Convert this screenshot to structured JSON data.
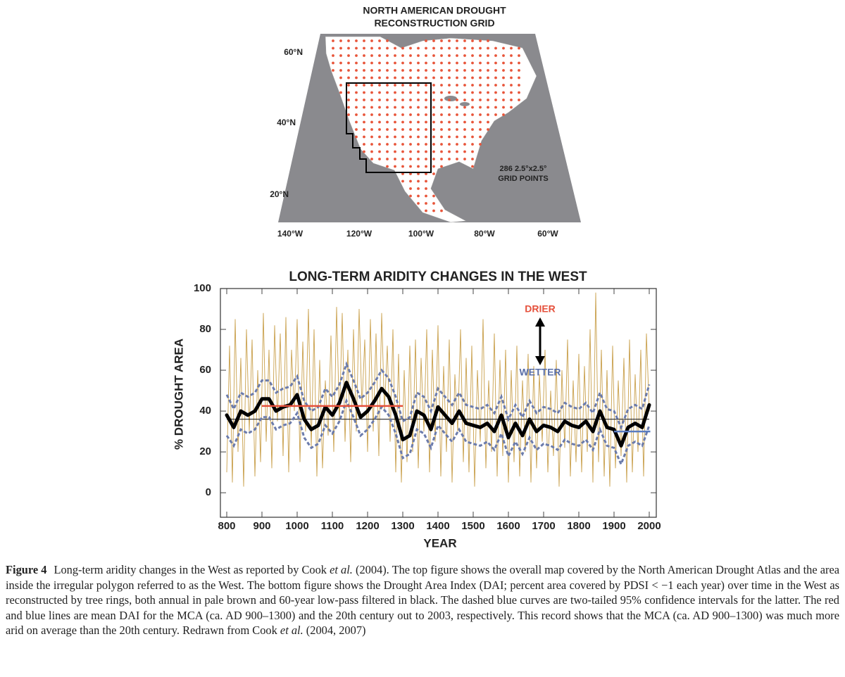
{
  "map": {
    "title_lines": [
      "NORTH AMERICAN DROUGHT",
      "RECONSTRUCTION GRID"
    ],
    "lat_labels": [
      "60°N",
      "40°N",
      "20°N"
    ],
    "lon_labels": [
      "140°W",
      "120°W",
      "100°W",
      "80°W",
      "60°W"
    ],
    "note_lines": [
      "286 2.5°x2.5°",
      "GRID POINTS"
    ]
  },
  "chart_data": {
    "type": "line",
    "title": "LONG-TERM ARIDITY CHANGES IN THE WEST",
    "x_label": "YEAR",
    "y_label": "% DROUGHT AREA",
    "xlim": [
      782,
      2020
    ],
    "ylim": [
      -12,
      100
    ],
    "xticks": [
      800,
      900,
      1000,
      1100,
      1200,
      1300,
      1400,
      1500,
      1600,
      1700,
      1800,
      1900,
      2000
    ],
    "yticks": [
      0,
      20,
      40,
      60,
      80,
      100
    ],
    "annotations": [
      {
        "text": "DRIER",
        "color": "#e5503b"
      },
      {
        "text": "WETTER",
        "color": "#5a6fa8"
      }
    ],
    "series": [
      {
        "color": "#c9a04c",
        "style": "solid",
        "x": [
          800,
          808,
          816,
          824,
          832,
          840,
          848,
          856,
          864,
          872,
          880,
          888,
          896,
          904,
          912,
          920,
          928,
          936,
          944,
          952,
          960,
          968,
          976,
          984,
          992,
          1000,
          1008,
          1016,
          1024,
          1032,
          1040,
          1048,
          1056,
          1064,
          1072,
          1080,
          1088,
          1096,
          1104,
          1112,
          1120,
          1128,
          1136,
          1144,
          1152,
          1160,
          1168,
          1176,
          1184,
          1192,
          1200,
          1208,
          1216,
          1224,
          1232,
          1240,
          1248,
          1256,
          1264,
          1272,
          1280,
          1288,
          1296,
          1304,
          1312,
          1320,
          1328,
          1336,
          1344,
          1352,
          1360,
          1368,
          1376,
          1384,
          1392,
          1400,
          1408,
          1416,
          1424,
          1432,
          1440,
          1448,
          1456,
          1464,
          1472,
          1480,
          1488,
          1496,
          1504,
          1512,
          1520,
          1528,
          1536,
          1544,
          1552,
          1560,
          1568,
          1576,
          1584,
          1592,
          1600,
          1608,
          1616,
          1624,
          1632,
          1640,
          1648,
          1656,
          1664,
          1672,
          1680,
          1688,
          1696,
          1704,
          1712,
          1720,
          1728,
          1736,
          1744,
          1752,
          1760,
          1768,
          1776,
          1784,
          1792,
          1800,
          1808,
          1816,
          1824,
          1832,
          1840,
          1848,
          1856,
          1864,
          1872,
          1880,
          1888,
          1896,
          1904,
          1912,
          1920,
          1928,
          1936,
          1944,
          1952,
          1960,
          1968,
          1976,
          1984,
          1992,
          2000
        ],
        "values": [
          10,
          72,
          5,
          85,
          20,
          66,
          3,
          80,
          30,
          75,
          8,
          60,
          15,
          88,
          25,
          70,
          12,
          82,
          35,
          78,
          18,
          86,
          10,
          70,
          40,
          85,
          15,
          74,
          30,
          90,
          22,
          80,
          8,
          65,
          12,
          55,
          28,
          77,
          20,
          91,
          35,
          88,
          25,
          70,
          15,
          80,
          30,
          90,
          42,
          75,
          20,
          85,
          30,
          78,
          18,
          88,
          40,
          72,
          25,
          80,
          10,
          68,
          5,
          60,
          15,
          72,
          20,
          75,
          12,
          66,
          30,
          80,
          10,
          70,
          25,
          82,
          8,
          62,
          20,
          75,
          5,
          58,
          30,
          80,
          15,
          66,
          10,
          72,
          3,
          60,
          25,
          85,
          12,
          55,
          20,
          78,
          8,
          65,
          18,
          70,
          5,
          60,
          15,
          72,
          8,
          55,
          20,
          68,
          5,
          62,
          12,
          58,
          25,
          70,
          10,
          50,
          18,
          65,
          3,
          60,
          22,
          75,
          8,
          55,
          15,
          68,
          10,
          62,
          20,
          80,
          5,
          98,
          15,
          70,
          8,
          60,
          3,
          72,
          12,
          55,
          18,
          66,
          5,
          75,
          10,
          58,
          20,
          70,
          8,
          78,
          40
        ]
      },
      {
        "color": "#222222",
        "style": "solid",
        "x": [
          800,
          2000
        ],
        "values": [
          36,
          36
        ]
      },
      {
        "color": "#6b7bab",
        "style": "dashed",
        "x": [
          800,
          820,
          840,
          860,
          880,
          900,
          920,
          940,
          960,
          980,
          1000,
          1020,
          1040,
          1060,
          1080,
          1100,
          1120,
          1140,
          1160,
          1180,
          1200,
          1220,
          1240,
          1260,
          1280,
          1300,
          1320,
          1340,
          1360,
          1380,
          1400,
          1420,
          1440,
          1460,
          1480,
          1500,
          1520,
          1540,
          1560,
          1580,
          1600,
          1620,
          1640,
          1660,
          1680,
          1700,
          1720,
          1740,
          1760,
          1780,
          1800,
          1820,
          1840,
          1860,
          1880,
          1900,
          1920,
          1940,
          1960,
          1980,
          2000
        ],
        "values": [
          48,
          41,
          49,
          47,
          49,
          55,
          55,
          49,
          51,
          52,
          57,
          45,
          40,
          42,
          51,
          47,
          53,
          63,
          55,
          46,
          49,
          54,
          60,
          56,
          47,
          35,
          37,
          49,
          47,
          40,
          51,
          47,
          43,
          49,
          43,
          42,
          41,
          43,
          39,
          47,
          36,
          43,
          37,
          45,
          39,
          42,
          41,
          39,
          44,
          42,
          41,
          44,
          39,
          49,
          41,
          40,
          32,
          41,
          43,
          41,
          53
        ]
      },
      {
        "color": "#6b7bab",
        "style": "dashed",
        "x": [
          800,
          820,
          840,
          860,
          880,
          900,
          920,
          940,
          960,
          980,
          1000,
          1020,
          1040,
          1060,
          1080,
          1100,
          1120,
          1140,
          1160,
          1180,
          1200,
          1220,
          1240,
          1260,
          1280,
          1300,
          1320,
          1340,
          1360,
          1380,
          1400,
          1420,
          1440,
          1460,
          1480,
          1500,
          1520,
          1540,
          1560,
          1580,
          1600,
          1620,
          1640,
          1660,
          1680,
          1700,
          1720,
          1740,
          1760,
          1780,
          1800,
          1820,
          1840,
          1860,
          1880,
          1900,
          1920,
          1940,
          1960,
          1980,
          2000
        ],
        "values": [
          28,
          23,
          31,
          29,
          31,
          37,
          37,
          31,
          33,
          34,
          39,
          27,
          22,
          24,
          33,
          29,
          35,
          45,
          37,
          28,
          31,
          36,
          42,
          38,
          29,
          17,
          19,
          31,
          29,
          22,
          33,
          29,
          25,
          31,
          25,
          24,
          23,
          25,
          21,
          29,
          18,
          25,
          19,
          27,
          21,
          24,
          23,
          21,
          26,
          24,
          23,
          26,
          21,
          31,
          23,
          22,
          14,
          23,
          25,
          23,
          33
        ]
      },
      {
        "color": "#000000",
        "style": "bold",
        "x": [
          800,
          820,
          840,
          860,
          880,
          900,
          920,
          940,
          960,
          980,
          1000,
          1020,
          1040,
          1060,
          1080,
          1100,
          1120,
          1140,
          1160,
          1180,
          1200,
          1220,
          1240,
          1260,
          1280,
          1300,
          1320,
          1340,
          1360,
          1380,
          1400,
          1420,
          1440,
          1460,
          1480,
          1500,
          1520,
          1540,
          1560,
          1580,
          1600,
          1620,
          1640,
          1660,
          1680,
          1700,
          1720,
          1740,
          1760,
          1780,
          1800,
          1820,
          1840,
          1860,
          1880,
          1900,
          1920,
          1940,
          1960,
          1980,
          2000
        ],
        "values": [
          38,
          32,
          40,
          38,
          40,
          46,
          46,
          40,
          42,
          43,
          48,
          36,
          31,
          33,
          42,
          38,
          44,
          54,
          46,
          37,
          40,
          45,
          51,
          47,
          38,
          26,
          28,
          40,
          38,
          31,
          42,
          38,
          34,
          40,
          34,
          33,
          32,
          34,
          30,
          38,
          27,
          34,
          28,
          36,
          30,
          33,
          32,
          30,
          35,
          33,
          32,
          35,
          30,
          40,
          32,
          31,
          23,
          32,
          34,
          32,
          43
        ]
      },
      {
        "color": "#e5503b",
        "style": "mean",
        "x": [
          900,
          1300
        ],
        "values": [
          42.5,
          42.5
        ]
      },
      {
        "color": "#5a7cc0",
        "style": "mean",
        "x": [
          1900,
          2003
        ],
        "values": [
          30,
          30
        ]
      }
    ]
  },
  "caption": {
    "label": "Figure 4",
    "segments": [
      {
        "text": "Long-term aridity changes in the West as reported by Cook ",
        "style": "normal"
      },
      {
        "text": "et al.",
        "style": "italic"
      },
      {
        "text": " (2004). The top figure shows the overall map covered by the North American Drought Atlas and the area inside the irregular polygon referred to as the West. The bottom figure shows the Drought Area Index (DAI; percent area covered by PDSI < −1 each year) over time in the West as reconstructed by tree rings, both annual in pale brown and 60-year low-pass filtered in black. The dashed blue curves are two-tailed 95% confidence intervals for the latter. The red and blue lines are mean DAI for the MCA (ca. AD 900–1300) and the 20th century out to 2003, respectively. This record shows that the MCA (ca. AD 900–1300) was much more arid on average than the 20th century. Redrawn from Cook ",
        "style": "normal"
      },
      {
        "text": "et al.",
        "style": "italic"
      },
      {
        "text": " (2004, 2007)",
        "style": "normal"
      }
    ]
  }
}
